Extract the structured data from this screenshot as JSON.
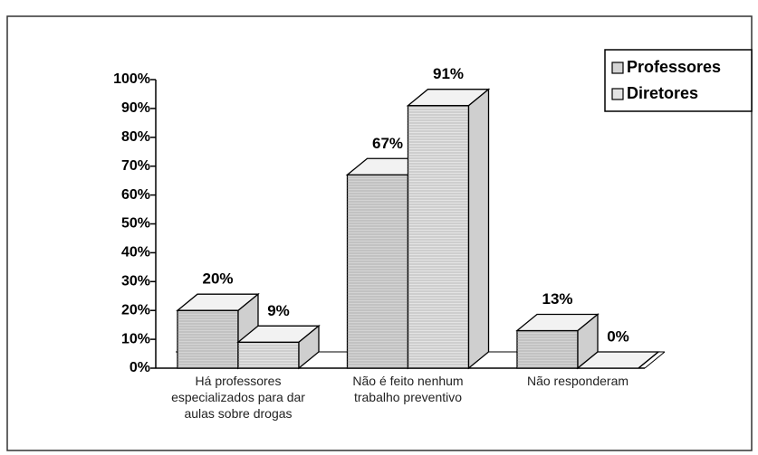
{
  "chart_data": {
    "type": "bar3d",
    "categories": [
      "Há professores especializados para dar aulas sobre drogas",
      "Não é feito nenhum trabalho preventivo",
      "Não responderam"
    ],
    "series": [
      {
        "name": "Professores",
        "color": "#d4d4d4",
        "values": [
          20,
          67,
          13
        ],
        "value_labels": [
          "20%",
          "67%",
          "13%"
        ]
      },
      {
        "name": "Diretores",
        "color": "#e4e4e4",
        "values": [
          9,
          91,
          0
        ],
        "value_labels": [
          "9%",
          "91%",
          "0%"
        ]
      }
    ],
    "ylim": [
      0,
      100
    ],
    "yticks": [
      {
        "value": 0,
        "label": "0%"
      },
      {
        "value": 10,
        "label": "10%"
      },
      {
        "value": 20,
        "label": "20%"
      },
      {
        "value": 30,
        "label": "30%"
      },
      {
        "value": 40,
        "label": "40%"
      },
      {
        "value": 50,
        "label": "50%"
      },
      {
        "value": 60,
        "label": "60%"
      },
      {
        "value": 70,
        "label": "70%"
      },
      {
        "value": 80,
        "label": "80%"
      },
      {
        "value": 90,
        "label": "90%"
      },
      {
        "value": 100,
        "label": "100%"
      }
    ],
    "legend": "top-right"
  }
}
